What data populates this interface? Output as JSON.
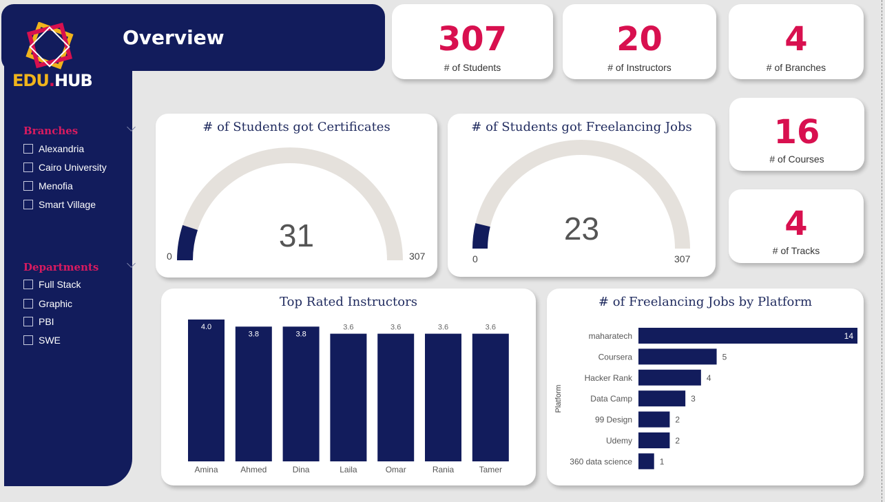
{
  "header": {
    "title": "Overview"
  },
  "logo": {
    "part1": "EDU",
    "dot": ".",
    "part2": "H",
    "part3": "UB"
  },
  "filters": {
    "branches": {
      "title": "Branches",
      "items": [
        "Alexandria",
        "Cairo University",
        "Menofia",
        "Smart Village"
      ]
    },
    "departments": {
      "title": "Departments",
      "items": [
        "Full Stack",
        "Graphic",
        "PBI",
        "SWE"
      ]
    }
  },
  "kpis": {
    "students": {
      "value": "307",
      "label": "# of Students"
    },
    "instructors": {
      "value": "20",
      "label": "# of Instructors"
    },
    "branches": {
      "value": "4",
      "label": "# of Branches"
    },
    "courses": {
      "value": "16",
      "label": "# of Courses"
    },
    "tracks": {
      "value": "4",
      "label": "# of Tracks"
    }
  },
  "gauges": {
    "certificates": {
      "title": "# of Students got Certificates",
      "value": "31",
      "min": "0",
      "max": "307"
    },
    "freelancing": {
      "title": "# of Students got Freelancing Jobs",
      "value": "23",
      "min": "0",
      "max": "307"
    }
  },
  "colors": {
    "navy": "#121c5c",
    "accent": "#d8104f",
    "gauge_track": "#e5e1dc",
    "logo_gold": "#f0b41c"
  },
  "chart_data": [
    {
      "type": "bar",
      "title": "Top Rated Instructors",
      "categories": [
        "Amina",
        "Ahmed",
        "Dina",
        "Laila",
        "Omar",
        "Rania",
        "Tamer"
      ],
      "values": [
        4.0,
        3.8,
        3.8,
        3.6,
        3.6,
        3.6,
        3.6
      ],
      "labels": [
        "4.0",
        "3.8",
        "3.8",
        "3.6",
        "3.6",
        "3.6",
        "3.6"
      ],
      "ylim": [
        0,
        4.0
      ],
      "xlabel": "",
      "ylabel": ""
    },
    {
      "type": "bar",
      "orientation": "horizontal",
      "title": "# of Freelancing Jobs by Platform",
      "categories": [
        "maharatech",
        "Coursera",
        "Hacker Rank",
        "Data Camp",
        "99 Design",
        "Udemy",
        "360 data science"
      ],
      "values": [
        14,
        5,
        4,
        3,
        2,
        2,
        1
      ],
      "ylabel": "Platform",
      "xlim": [
        0,
        14
      ]
    }
  ]
}
